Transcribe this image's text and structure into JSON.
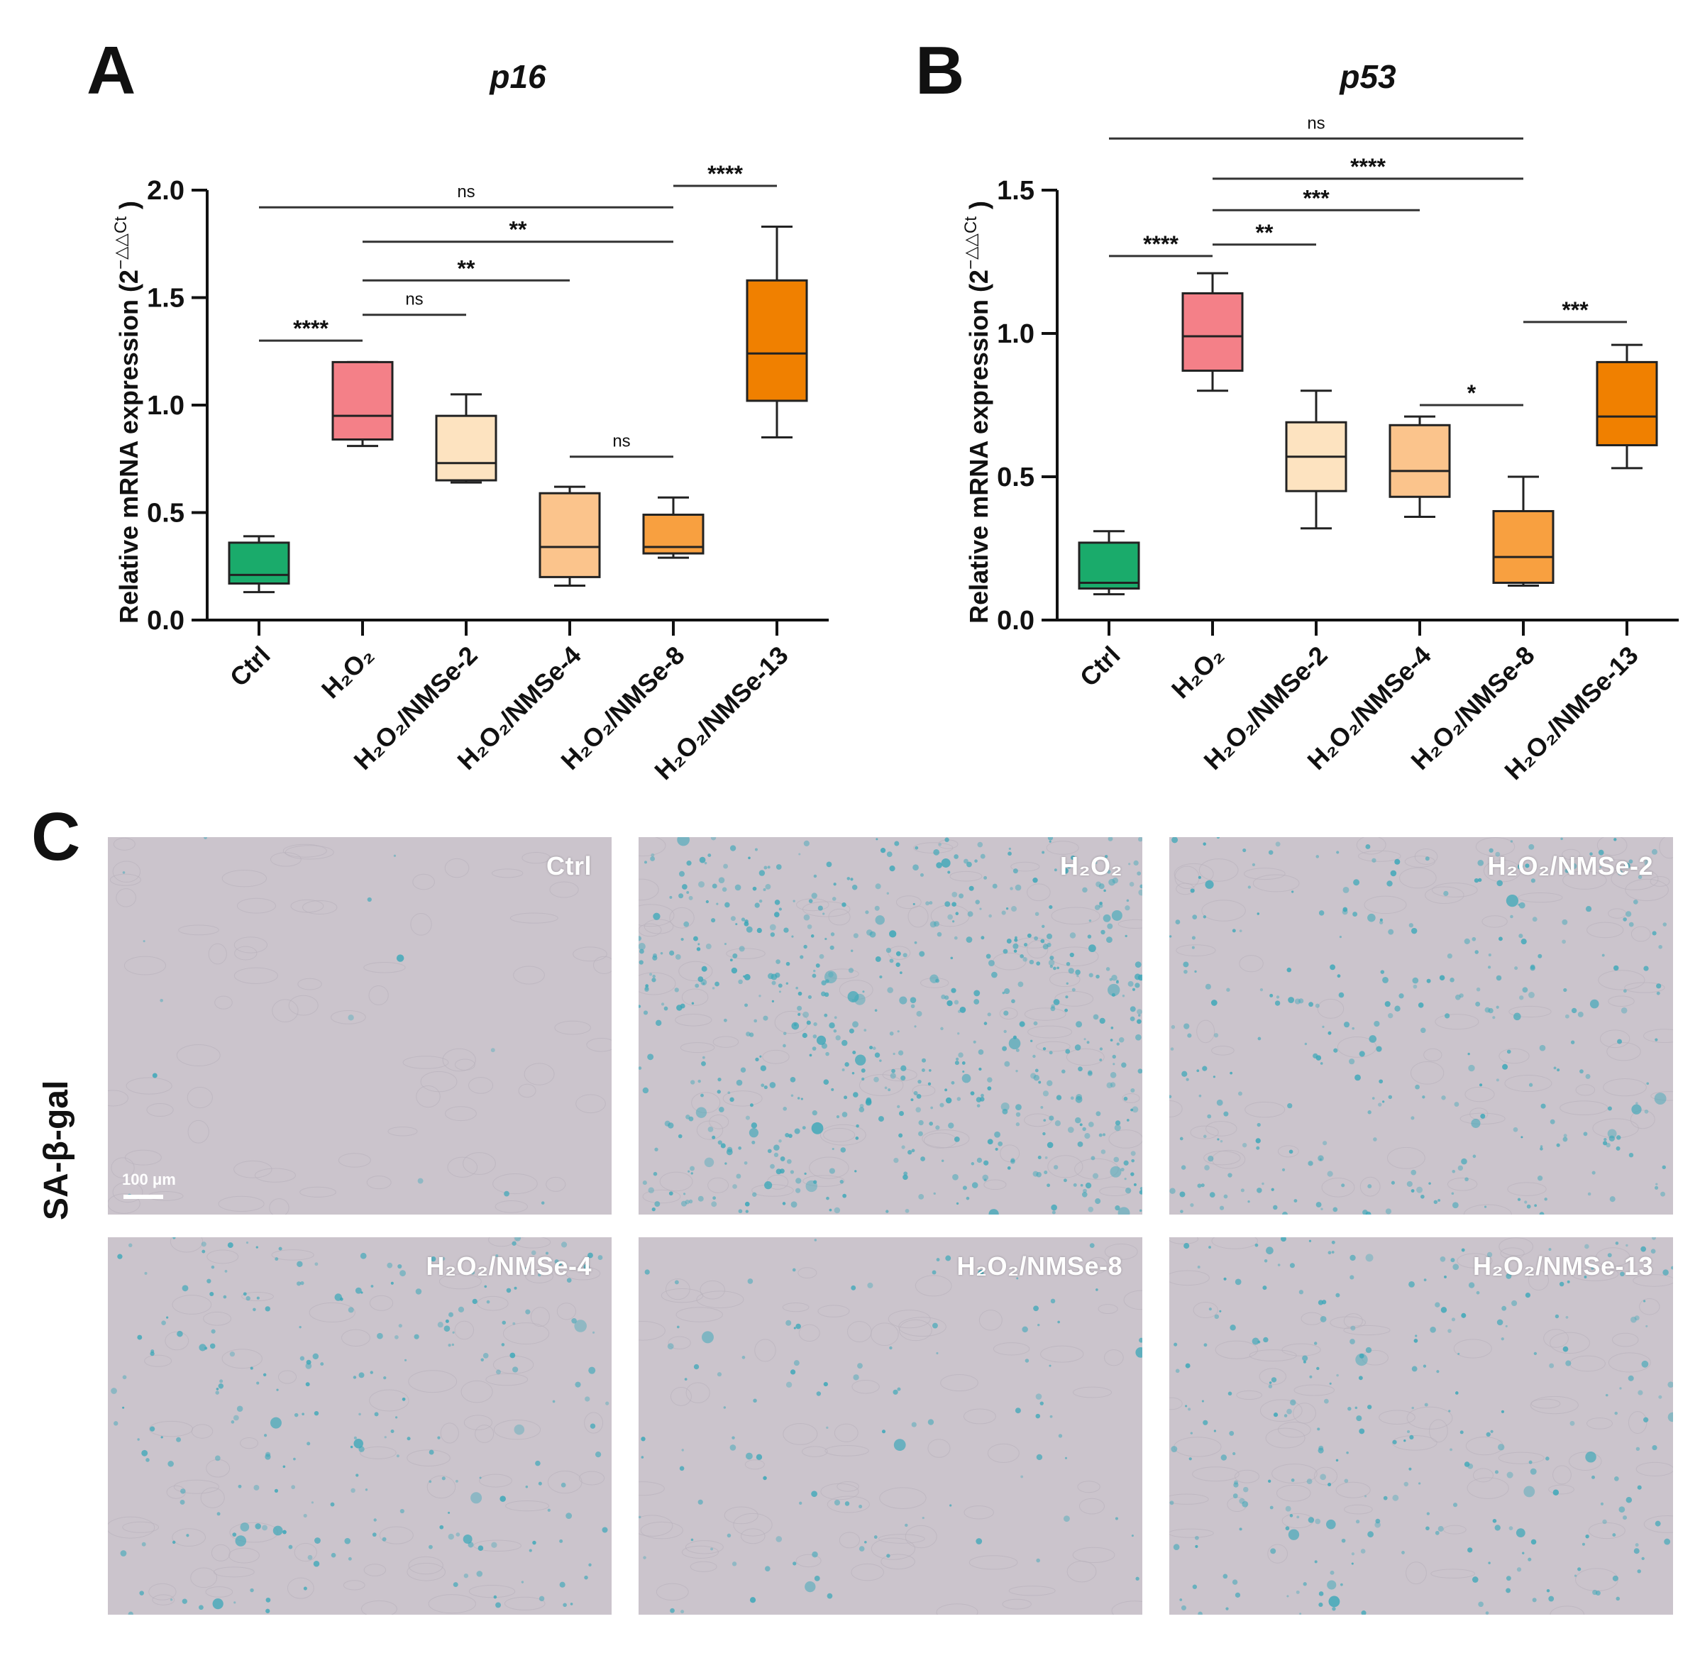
{
  "panels": {
    "A": "A",
    "B": "B",
    "C": "C"
  },
  "chart_data": [
    {
      "type": "box",
      "title": "p16",
      "ylabel": "Relative mRNA expression (2",
      "ylabel_superscript": "−△△Ct",
      "ylabel_close": ")",
      "ylim": [
        0,
        2.0
      ],
      "yticks": [
        "0.0",
        "0.5",
        "1.0",
        "1.5",
        "2.0"
      ],
      "ytick_values": [
        0,
        0.5,
        1.0,
        1.5,
        2.0
      ],
      "categories": [
        "Ctrl",
        "H₂O₂",
        "H₂O₂/NMSe-2",
        "H₂O₂/NMSe-4",
        "H₂O₂/NMSe-8",
        "H₂O₂/NMSe-13"
      ],
      "colors": [
        "#1aab6b",
        "#f48088",
        "#fde3c0",
        "#fbc48c",
        "#f8a040",
        "#f08000"
      ],
      "boxes": [
        {
          "min": 0.13,
          "q1": 0.17,
          "median": 0.21,
          "q3": 0.36,
          "max": 0.39
        },
        {
          "min": 0.81,
          "q1": 0.84,
          "median": 0.95,
          "q3": 1.2,
          "max": 1.2
        },
        {
          "min": 0.64,
          "q1": 0.65,
          "median": 0.73,
          "q3": 0.95,
          "max": 1.05
        },
        {
          "min": 0.16,
          "q1": 0.2,
          "median": 0.34,
          "q3": 0.59,
          "max": 0.62
        },
        {
          "min": 0.29,
          "q1": 0.31,
          "median": 0.34,
          "q3": 0.49,
          "max": 0.57
        },
        {
          "min": 0.85,
          "q1": 1.02,
          "median": 1.24,
          "q3": 1.58,
          "max": 1.83
        }
      ],
      "comparisons": [
        {
          "from": 0,
          "to": 1,
          "y": 1.3,
          "label": "****"
        },
        {
          "from": 1,
          "to": 2,
          "y": 1.42,
          "label": "ns"
        },
        {
          "from": 1,
          "to": 3,
          "y": 1.58,
          "label": "**"
        },
        {
          "from": 1,
          "to": 4,
          "y": 1.76,
          "label": "**"
        },
        {
          "from": 0,
          "to": 4,
          "y": 1.92,
          "label": "ns"
        },
        {
          "from": 3,
          "to": 4,
          "y": 0.76,
          "label": "ns"
        },
        {
          "from": 4,
          "to": 5,
          "y": 2.02,
          "label": "****"
        }
      ]
    },
    {
      "type": "box",
      "title": "p53",
      "ylabel": "Relative mRNA expression (2",
      "ylabel_superscript": "−△△Ct",
      "ylabel_close": ")",
      "ylim": [
        0,
        1.5
      ],
      "yticks": [
        "0.0",
        "0.5",
        "1.0",
        "1.5"
      ],
      "ytick_values": [
        0,
        0.5,
        1.0,
        1.5
      ],
      "categories": [
        "Ctrl",
        "H₂O₂",
        "H₂O₂/NMSe-2",
        "H₂O₂/NMSe-4",
        "H₂O₂/NMSe-8",
        "H₂O₂/NMSe-13"
      ],
      "colors": [
        "#1aab6b",
        "#f48088",
        "#fde3c0",
        "#fbc48c",
        "#f8a040",
        "#f08000"
      ],
      "boxes": [
        {
          "min": 0.09,
          "q1": 0.11,
          "median": 0.13,
          "q3": 0.27,
          "max": 0.31
        },
        {
          "min": 0.8,
          "q1": 0.87,
          "median": 0.99,
          "q3": 1.14,
          "max": 1.21
        },
        {
          "min": 0.32,
          "q1": 0.45,
          "median": 0.57,
          "q3": 0.69,
          "max": 0.8
        },
        {
          "min": 0.36,
          "q1": 0.43,
          "median": 0.52,
          "q3": 0.68,
          "max": 0.71
        },
        {
          "min": 0.12,
          "q1": 0.13,
          "median": 0.22,
          "q3": 0.38,
          "max": 0.5
        },
        {
          "min": 0.53,
          "q1": 0.61,
          "median": 0.71,
          "q3": 0.9,
          "max": 0.96
        }
      ],
      "comparisons": [
        {
          "from": 0,
          "to": 1,
          "y": 1.27,
          "label": "****"
        },
        {
          "from": 1,
          "to": 2,
          "y": 1.31,
          "label": "**"
        },
        {
          "from": 1,
          "to": 3,
          "y": 1.43,
          "label": "***"
        },
        {
          "from": 1,
          "to": 4,
          "y": 1.54,
          "label": "****"
        },
        {
          "from": 0,
          "to": 4,
          "y": 1.68,
          "label": "ns"
        },
        {
          "from": 3,
          "to": 4,
          "y": 0.75,
          "label": "*"
        },
        {
          "from": 4,
          "to": 5,
          "y": 1.04,
          "label": "***"
        }
      ]
    }
  ],
  "micrographs": {
    "row_label": "SA-β-gal",
    "scale_bar": "100 μm",
    "labels": [
      "Ctrl",
      "H₂O₂",
      "H₂O₂/NMSe-2",
      "H₂O₂/NMSe-4",
      "H₂O₂/NMSe-8",
      "H₂O₂/NMSe-13"
    ],
    "staining_density": [
      0.02,
      1.0,
      0.45,
      0.35,
      0.15,
      0.4
    ],
    "background": "#cbc4cc",
    "stain_color": "#3aa7b8"
  }
}
